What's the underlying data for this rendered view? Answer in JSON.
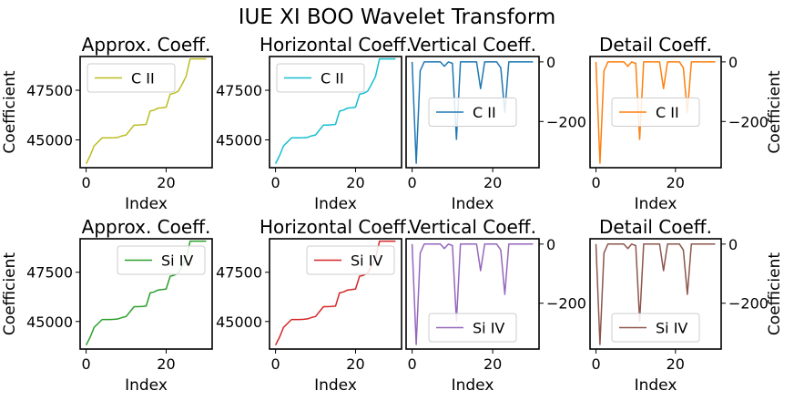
{
  "figure": {
    "title": "IUE XI BOO Wavelet Transform"
  },
  "chart_data": [
    {
      "type": "line",
      "row": 0,
      "col": 0,
      "title": "Approx. Coeff.",
      "xlabel": "Index",
      "ylabel": "Coefficient",
      "legend": "C II",
      "color": "#bcbd22",
      "yaxis": "left",
      "legend_loc": "upper-left",
      "xlim": [
        -1.5,
        31.5
      ],
      "ylim": [
        43600,
        49200
      ],
      "xticks": [
        0,
        20
      ],
      "yticks": [
        45000,
        47500
      ],
      "x": [
        0,
        1,
        2,
        3,
        4,
        5,
        6,
        7,
        8,
        9,
        10,
        11,
        12,
        13,
        14,
        15,
        16,
        17,
        18,
        19,
        20,
        21,
        22,
        23,
        24,
        25,
        26,
        27,
        28,
        29,
        30
      ],
      "values": [
        43800,
        44200,
        44700,
        44900,
        45100,
        45100,
        45100,
        45110,
        45130,
        45200,
        45250,
        45500,
        45750,
        45750,
        45760,
        45780,
        46450,
        46500,
        46600,
        46620,
        46650,
        47300,
        47350,
        47450,
        47800,
        48200,
        49080,
        49080,
        49080,
        49080,
        49080
      ]
    },
    {
      "type": "line",
      "row": 0,
      "col": 1,
      "title": "Horizontal Coeff.",
      "xlabel": "Index",
      "ylabel": "",
      "legend": "C II",
      "color": "#17becf",
      "yaxis": "left",
      "legend_loc": "upper-left",
      "xlim": [
        -1.5,
        31.5
      ],
      "ylim": [
        43600,
        49200
      ],
      "xticks": [
        0,
        20
      ],
      "yticks": [
        45000,
        47500
      ],
      "x": [
        0,
        1,
        2,
        3,
        4,
        5,
        6,
        7,
        8,
        9,
        10,
        11,
        12,
        13,
        14,
        15,
        16,
        17,
        18,
        19,
        20,
        21,
        22,
        23,
        24,
        25,
        26,
        27,
        28,
        29,
        30
      ],
      "values": [
        43800,
        44200,
        44700,
        44900,
        45100,
        45100,
        45100,
        45110,
        45130,
        45200,
        45250,
        45500,
        45750,
        45750,
        45760,
        45780,
        46450,
        46500,
        46600,
        46620,
        46650,
        47300,
        47350,
        47450,
        47800,
        48200,
        49080,
        49080,
        49080,
        49080,
        49080
      ]
    },
    {
      "type": "line",
      "row": 0,
      "col": 2,
      "title": "Vertical Coeff.",
      "xlabel": "Index",
      "ylabel": "",
      "legend": "C II",
      "color": "#1f77b4",
      "yaxis": "right",
      "legend_loc": "center",
      "xlim": [
        -1.5,
        31.5
      ],
      "ylim": [
        -355,
        18
      ],
      "xticks": [
        0,
        20
      ],
      "yticks": [
        -200,
        0
      ],
      "x": [
        0,
        1,
        2,
        3,
        4,
        5,
        6,
        7,
        8,
        9,
        10,
        11,
        12,
        13,
        14,
        15,
        16,
        17,
        18,
        19,
        20,
        21,
        22,
        23,
        24,
        25,
        26,
        27,
        28,
        29,
        30
      ],
      "values": [
        0,
        -340,
        -30,
        0,
        0,
        0,
        0,
        0,
        -15,
        0,
        -5,
        -260,
        0,
        0,
        0,
        0,
        0,
        -90,
        0,
        0,
        0,
        0,
        -20,
        -170,
        0,
        0,
        0,
        0,
        0,
        0,
        0
      ]
    },
    {
      "type": "line",
      "row": 0,
      "col": 3,
      "title": "Detail Coeff.",
      "xlabel": "Index",
      "ylabel": "Coefficient",
      "legend": "C II",
      "color": "#ff7f0e",
      "yaxis": "right",
      "legend_loc": "center",
      "xlim": [
        -1.5,
        31.5
      ],
      "ylim": [
        -355,
        18
      ],
      "xticks": [
        0,
        20
      ],
      "yticks": [
        -200,
        0
      ],
      "x": [
        0,
        1,
        2,
        3,
        4,
        5,
        6,
        7,
        8,
        9,
        10,
        11,
        12,
        13,
        14,
        15,
        16,
        17,
        18,
        19,
        20,
        21,
        22,
        23,
        24,
        25,
        26,
        27,
        28,
        29,
        30
      ],
      "values": [
        0,
        -340,
        -30,
        0,
        0,
        0,
        0,
        0,
        -15,
        0,
        -5,
        -260,
        0,
        0,
        0,
        0,
        0,
        -90,
        0,
        0,
        0,
        0,
        -20,
        -170,
        0,
        0,
        0,
        0,
        0,
        0,
        0
      ]
    },
    {
      "type": "line",
      "row": 1,
      "col": 0,
      "title": "Approx. Coeff.",
      "xlabel": "Index",
      "ylabel": "Coefficient",
      "legend": "Si IV",
      "color": "#2ca02c",
      "yaxis": "left",
      "legend_loc": "upper-right",
      "xlim": [
        -1.5,
        31.5
      ],
      "ylim": [
        43600,
        49200
      ],
      "xticks": [
        0,
        20
      ],
      "yticks": [
        45000,
        47500
      ],
      "x": [
        0,
        1,
        2,
        3,
        4,
        5,
        6,
        7,
        8,
        9,
        10,
        11,
        12,
        13,
        14,
        15,
        16,
        17,
        18,
        19,
        20,
        21,
        22,
        23,
        24,
        25,
        26,
        27,
        28,
        29,
        30
      ],
      "values": [
        43800,
        44200,
        44700,
        44900,
        45100,
        45100,
        45100,
        45110,
        45130,
        45200,
        45250,
        45500,
        45750,
        45750,
        45760,
        45780,
        46450,
        46500,
        46600,
        46620,
        46650,
        47300,
        47350,
        47450,
        47800,
        48200,
        49080,
        49080,
        49080,
        49080,
        49080
      ]
    },
    {
      "type": "line",
      "row": 1,
      "col": 1,
      "title": "Horizontal Coeff.",
      "xlabel": "Index",
      "ylabel": "",
      "legend": "Si IV",
      "color": "#d62728",
      "yaxis": "left",
      "legend_loc": "upper-right",
      "xlim": [
        -1.5,
        31.5
      ],
      "ylim": [
        43600,
        49200
      ],
      "xticks": [
        0,
        20
      ],
      "yticks": [
        45000,
        47500
      ],
      "x": [
        0,
        1,
        2,
        3,
        4,
        5,
        6,
        7,
        8,
        9,
        10,
        11,
        12,
        13,
        14,
        15,
        16,
        17,
        18,
        19,
        20,
        21,
        22,
        23,
        24,
        25,
        26,
        27,
        28,
        29,
        30
      ],
      "values": [
        43800,
        44200,
        44700,
        44900,
        45100,
        45100,
        45100,
        45110,
        45130,
        45200,
        45250,
        45500,
        45750,
        45750,
        45760,
        45780,
        46450,
        46500,
        46600,
        46620,
        46650,
        47300,
        47350,
        47450,
        47800,
        48200,
        49080,
        49080,
        49080,
        49080,
        49080
      ]
    },
    {
      "type": "line",
      "row": 1,
      "col": 2,
      "title": "Vertical Coeff.",
      "xlabel": "Index",
      "ylabel": "",
      "legend": "Si IV",
      "color": "#9467bd",
      "yaxis": "right",
      "legend_loc": "lower-center",
      "xlim": [
        -1.5,
        31.5
      ],
      "ylim": [
        -355,
        18
      ],
      "xticks": [
        0,
        20
      ],
      "yticks": [
        -200,
        0
      ],
      "x": [
        0,
        1,
        2,
        3,
        4,
        5,
        6,
        7,
        8,
        9,
        10,
        11,
        12,
        13,
        14,
        15,
        16,
        17,
        18,
        19,
        20,
        21,
        22,
        23,
        24,
        25,
        26,
        27,
        28,
        29,
        30
      ],
      "values": [
        0,
        -340,
        -30,
        0,
        0,
        0,
        0,
        0,
        -15,
        0,
        -5,
        -260,
        0,
        0,
        0,
        0,
        0,
        -90,
        0,
        0,
        0,
        0,
        -20,
        -170,
        0,
        0,
        0,
        0,
        0,
        0,
        0
      ]
    },
    {
      "type": "line",
      "row": 1,
      "col": 3,
      "title": "Detail Coeff.",
      "xlabel": "Index",
      "ylabel": "Coefficient",
      "legend": "Si IV",
      "color": "#8c564b",
      "yaxis": "right",
      "legend_loc": "lower-center",
      "xlim": [
        -1.5,
        31.5
      ],
      "ylim": [
        -355,
        18
      ],
      "xticks": [
        0,
        20
      ],
      "yticks": [
        -200,
        0
      ],
      "x": [
        0,
        1,
        2,
        3,
        4,
        5,
        6,
        7,
        8,
        9,
        10,
        11,
        12,
        13,
        14,
        15,
        16,
        17,
        18,
        19,
        20,
        21,
        22,
        23,
        24,
        25,
        26,
        27,
        28,
        29,
        30
      ],
      "values": [
        0,
        -340,
        -30,
        0,
        0,
        0,
        0,
        0,
        -15,
        0,
        -5,
        -260,
        0,
        0,
        0,
        0,
        0,
        -90,
        0,
        0,
        0,
        0,
        -20,
        -170,
        0,
        0,
        0,
        0,
        0,
        0,
        0
      ]
    }
  ]
}
